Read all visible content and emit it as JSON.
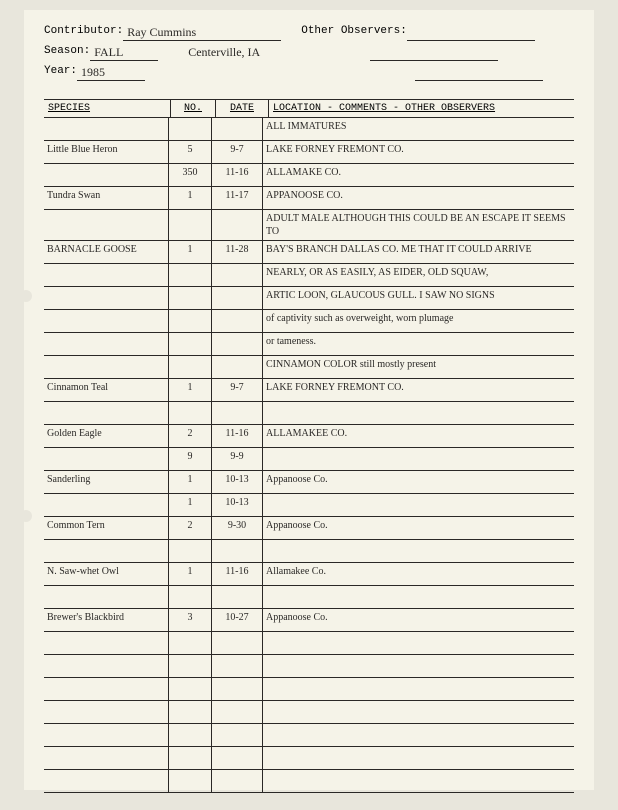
{
  "header": {
    "contributor_label": "Contributor:",
    "contributor_value": "Ray Cummins",
    "other_observers_label": "Other Observers:",
    "season_label": "Season:",
    "season_value": "FALL",
    "location_value": "Centerville, IA",
    "year_label": "Year:",
    "year_value": "1985"
  },
  "columns": {
    "species": "SPECIES",
    "no": "NO.",
    "date": "DATE",
    "loc": "LOCATION - COMMENTS -  OTHER OBSERVERS"
  },
  "rows": [
    {
      "species": "",
      "no": "",
      "date": "",
      "loc": "ALL IMMATURES"
    },
    {
      "species": "Little Blue Heron",
      "no": "5",
      "date": "9-7",
      "loc": "LAKE FORNEY FREMONT CO."
    },
    {
      "species": "",
      "no": "350",
      "date": "11-16",
      "loc": "ALLAMAKE CO."
    },
    {
      "species": "Tundra Swan",
      "no": "1",
      "date": "11-17",
      "loc": "APPANOOSE CO."
    },
    {
      "species": "",
      "no": "",
      "date": "",
      "loc": "ADULT MALE      ALTHOUGH THIS COULD BE AN ESCAPE IT SEEMS TO"
    },
    {
      "species": "BARNACLE GOOSE",
      "no": "1",
      "date": "11-28",
      "loc": "BAY'S BRANCH DALLAS CO.  ME THAT IT COULD ARRIVE"
    },
    {
      "species": "",
      "no": "",
      "date": "",
      "loc": "NEARLY, OR AS EASILY, AS EIDER, OLD SQUAW,"
    },
    {
      "species": "",
      "no": "",
      "date": "",
      "loc": "ARTIC LOON, GLAUCOUS GULL.  I SAW NO SIGNS"
    },
    {
      "species": "",
      "no": "",
      "date": "",
      "loc": "of captivity such as overweight, worn plumage"
    },
    {
      "species": "",
      "no": "",
      "date": "",
      "loc": "or tameness."
    },
    {
      "species": "",
      "no": "",
      "date": "",
      "loc": "CINNAMON COLOR still mostly present"
    },
    {
      "species": "Cinnamon Teal",
      "no": "1",
      "date": "9-7",
      "loc": "LAKE FORNEY  FREMONT CO."
    },
    {
      "species": "",
      "no": "",
      "date": "",
      "loc": ""
    },
    {
      "species": "Golden Eagle",
      "no": "2",
      "date": "11-16",
      "loc": "ALLAMAKEE CO."
    },
    {
      "species": "",
      "no": "9",
      "date": "9-9",
      "loc": ""
    },
    {
      "species": "Sanderling",
      "no": "1",
      "date": "10-13",
      "loc": "Appanoose Co."
    },
    {
      "species": "",
      "no": "1",
      "date": "10-13",
      "loc": ""
    },
    {
      "species": "Common Tern",
      "no": "2",
      "date": "9-30",
      "loc": "Appanoose Co."
    },
    {
      "species": "",
      "no": "",
      "date": "",
      "loc": ""
    },
    {
      "species": "N. Saw-whet Owl",
      "no": "1",
      "date": "11-16",
      "loc": "Allamakee Co."
    },
    {
      "species": "",
      "no": "",
      "date": "",
      "loc": ""
    },
    {
      "species": "Brewer's Blackbird",
      "no": "3",
      "date": "10-27",
      "loc": "Appanoose Co."
    },
    {
      "species": "",
      "no": "",
      "date": "",
      "loc": ""
    },
    {
      "species": "",
      "no": "",
      "date": "",
      "loc": ""
    },
    {
      "species": "",
      "no": "",
      "date": "",
      "loc": ""
    },
    {
      "species": "",
      "no": "",
      "date": "",
      "loc": ""
    },
    {
      "species": "",
      "no": "",
      "date": "",
      "loc": ""
    },
    {
      "species": "",
      "no": "",
      "date": "",
      "loc": ""
    },
    {
      "species": "",
      "no": "",
      "date": "",
      "loc": ""
    }
  ],
  "colors": {
    "page_bg": "#f5f3e8",
    "outer_bg": "#e8e6dc",
    "line": "#2a2826",
    "text": "#2a2826"
  }
}
